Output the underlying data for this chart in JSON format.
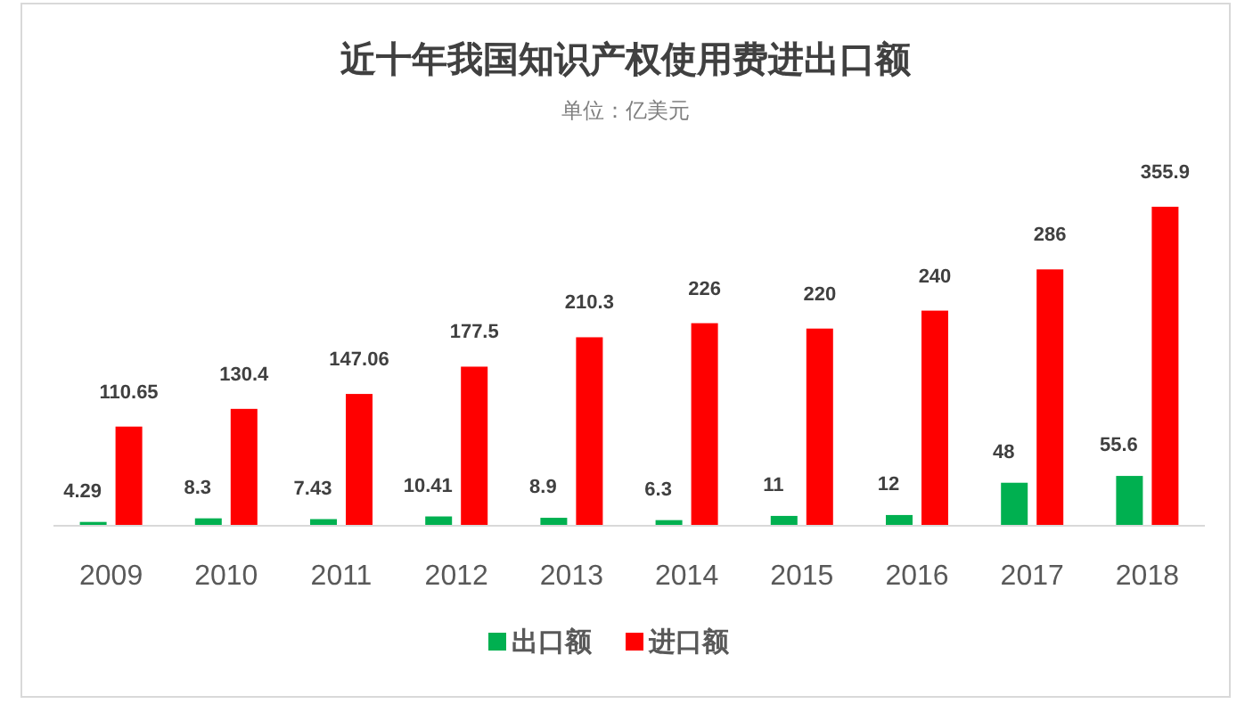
{
  "chart_data": {
    "type": "bar",
    "title": "近十年我国知识产权使用费进出口额",
    "subtitle": "单位：亿美元",
    "categories": [
      "2009",
      "2010",
      "2011",
      "2012",
      "2013",
      "2014",
      "2015",
      "2016",
      "2017",
      "2018"
    ],
    "series": [
      {
        "name": "出口额",
        "color": "#00b050",
        "values": [
          4.29,
          8.3,
          7.43,
          10.41,
          8.9,
          6.3,
          11,
          12,
          48,
          55.6
        ]
      },
      {
        "name": "进口额",
        "color": "#ff0000",
        "values": [
          110.65,
          130.4,
          147.06,
          177.5,
          210.3,
          226,
          220,
          240,
          286,
          355.9
        ]
      }
    ],
    "data_labels": true,
    "legend": "bottom"
  }
}
